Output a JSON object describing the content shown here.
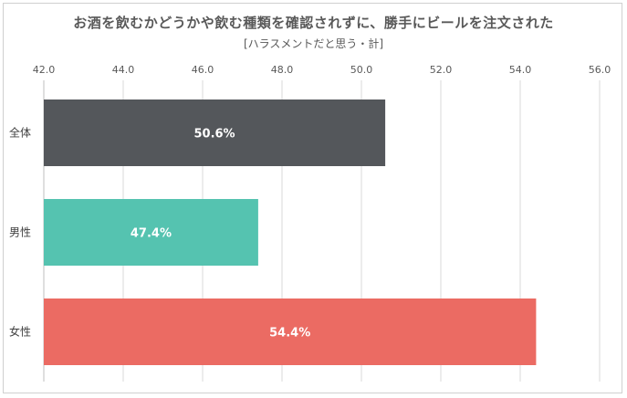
{
  "chart_data": {
    "type": "bar",
    "orientation": "horizontal",
    "title": "お酒を飲むかどうかや飲む種類を確認されずに、勝手にビールを注文された",
    "subtitle": "[ハラスメントだと思う・計]",
    "categories": [
      "全体",
      "男性",
      "女性"
    ],
    "values": [
      50.6,
      47.4,
      54.4
    ],
    "data_labels": [
      "50.6%",
      "47.4%",
      "54.4%"
    ],
    "colors": [
      "#54575b",
      "#55c3b0",
      "#eb6b63"
    ],
    "xlim": [
      42.0,
      56.0
    ],
    "x_ticks": [
      "42.0",
      "44.0",
      "46.0",
      "48.0",
      "50.0",
      "52.0",
      "54.0",
      "56.0"
    ],
    "x_tick_values": [
      42,
      44,
      46,
      48,
      50,
      52,
      54,
      56
    ],
    "grid": true,
    "xlabel": "",
    "ylabel": ""
  },
  "colors": {
    "grid": "#d9d9d9",
    "axis": "#bfbfbf",
    "text": "#595959"
  }
}
